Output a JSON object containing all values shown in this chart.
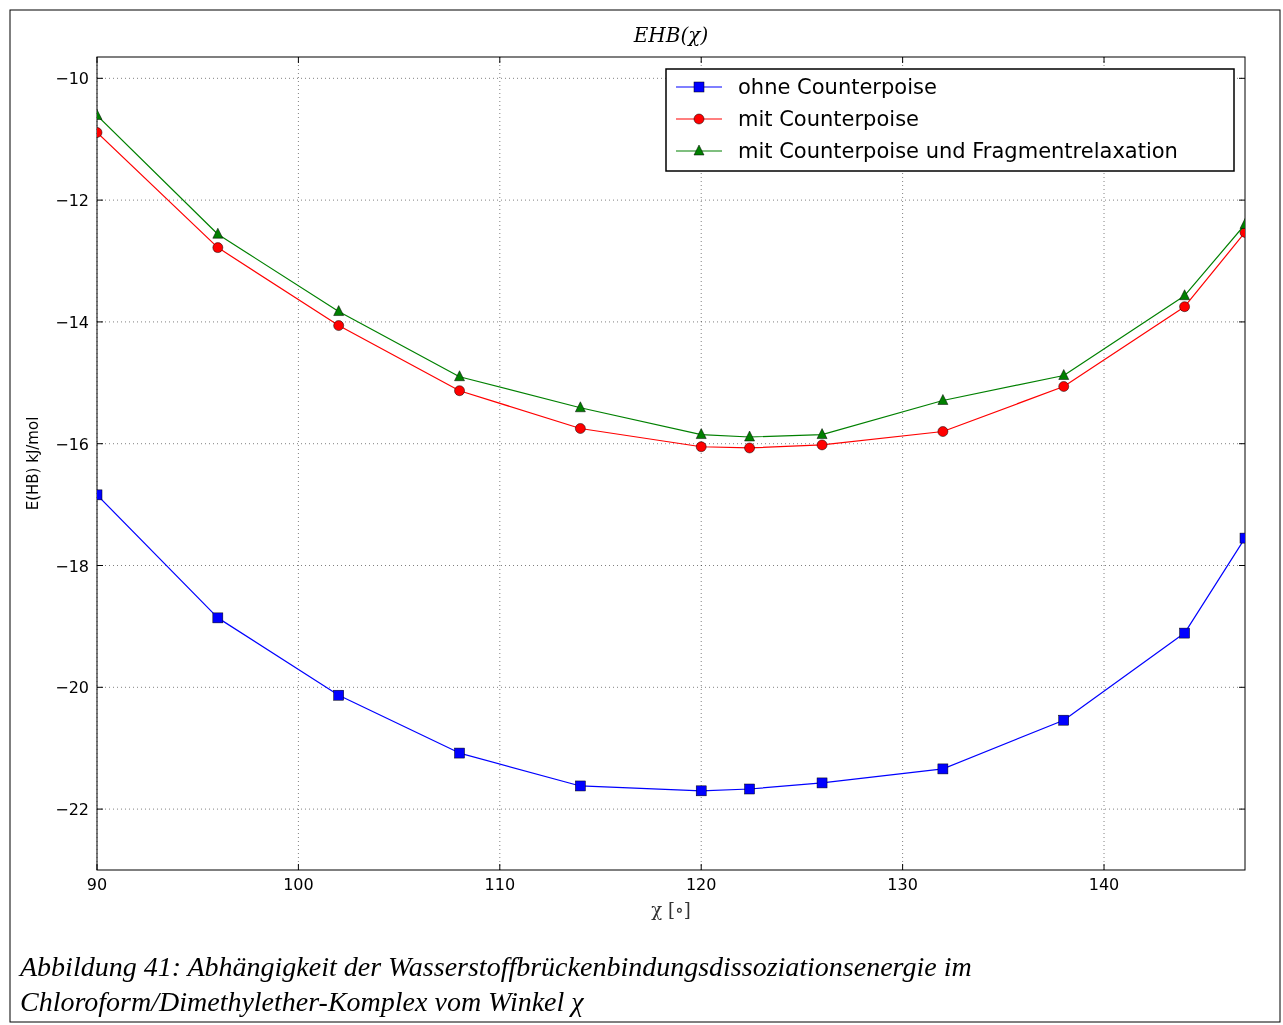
{
  "chart_data": {
    "type": "line",
    "title": "EHB(χ)",
    "xlabel": "χ [∘]",
    "ylabel": "E(HB) kJ/mol",
    "x": [
      90,
      96,
      102,
      108,
      114,
      120,
      122.4,
      126,
      132,
      138,
      144,
      147
    ],
    "xlim": [
      90,
      147
    ],
    "xticks": [
      90,
      100,
      110,
      120,
      130,
      140
    ],
    "ylim": [
      -23,
      -9.65
    ],
    "yticks": [
      {
        "value": -10,
        "label": "−10"
      },
      {
        "value": -12,
        "label": "−12"
      },
      {
        "value": -14,
        "label": "−14"
      },
      {
        "value": -16,
        "label": "−16"
      },
      {
        "value": -18,
        "label": "−18"
      },
      {
        "value": -20,
        "label": "−20"
      },
      {
        "value": -22,
        "label": "−22"
      }
    ],
    "series": [
      {
        "name": "ohne Counterpoise",
        "color": "#0000ff",
        "marker": "square",
        "values": [
          -16.84,
          -18.86,
          -20.13,
          -21.08,
          -21.62,
          -21.7,
          -21.67,
          -21.57,
          -21.34,
          -20.54,
          -19.11,
          -17.55
        ]
      },
      {
        "name": "mit Counterpoise",
        "color": "#ff0000",
        "marker": "circle",
        "values": [
          -10.89,
          -12.78,
          -14.06,
          -15.13,
          -15.75,
          -16.05,
          -16.07,
          -16.02,
          -15.8,
          -15.06,
          -13.75,
          -12.53
        ]
      },
      {
        "name": "mit Counterpoise und Fragmentrelaxation",
        "color": "#008000",
        "marker": "triangle",
        "values": [
          -10.61,
          -12.56,
          -13.83,
          -14.9,
          -15.41,
          -15.85,
          -15.89,
          -15.85,
          -15.29,
          -14.88,
          -13.57,
          -12.4
        ]
      }
    ],
    "grid": true,
    "legend": "top right",
    "annotations": [
      "Abbildung 41: Abhängigkeit der Wasserstoffbrückenbindungsdissoziationsenergie im Chloroform/Dimethylether-Komplex vom Winkel χ"
    ]
  }
}
